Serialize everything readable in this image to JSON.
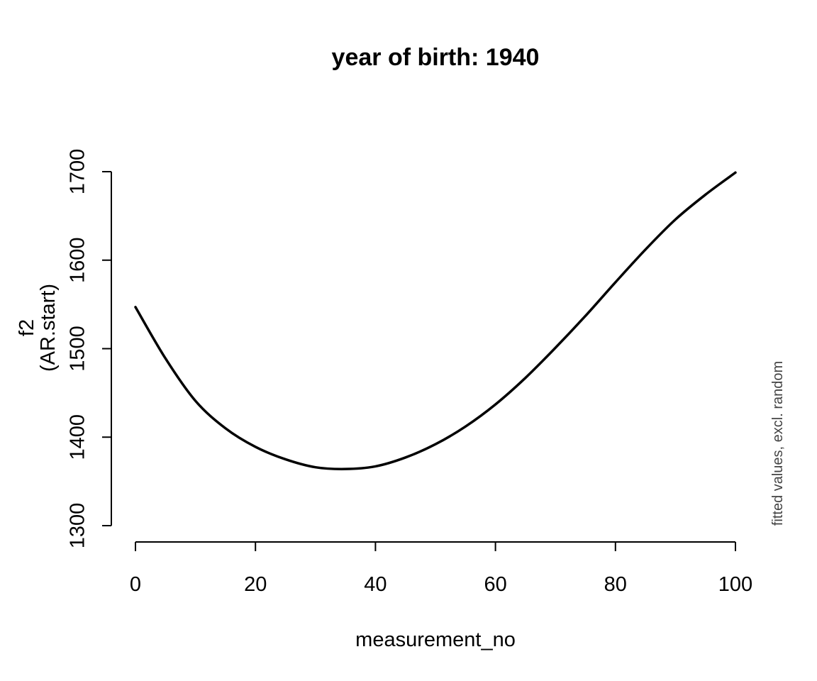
{
  "chart_data": {
    "type": "line",
    "title": "year of birth: 1940",
    "xlabel": "measurement_no",
    "ylabel_line1": "f2",
    "ylabel_line2": "(AR.start)",
    "side_note": "fitted values, excl. random",
    "xlim": [
      0,
      100
    ],
    "ylim": [
      1300,
      1700
    ],
    "x_ticks": [
      0,
      20,
      40,
      60,
      80,
      100
    ],
    "y_ticks": [
      1300,
      1400,
      1500,
      1600,
      1700
    ],
    "x_tick_labels": [
      "0",
      "20",
      "40",
      "60",
      "80",
      "100"
    ],
    "y_tick_labels": [
      "1300",
      "1400",
      "1500",
      "1600",
      "1700"
    ],
    "grid": false,
    "series": [
      {
        "color": "#000000",
        "x": [
          0,
          5,
          10,
          15,
          20,
          25,
          30,
          35,
          40,
          45,
          50,
          55,
          60,
          65,
          70,
          75,
          80,
          85,
          90,
          95,
          100
        ],
        "y": [
          1547,
          1489,
          1441,
          1410,
          1389,
          1375,
          1366,
          1364,
          1367,
          1377,
          1392,
          1412,
          1437,
          1467,
          1501,
          1537,
          1575,
          1612,
          1646,
          1674,
          1699
        ]
      }
    ]
  }
}
